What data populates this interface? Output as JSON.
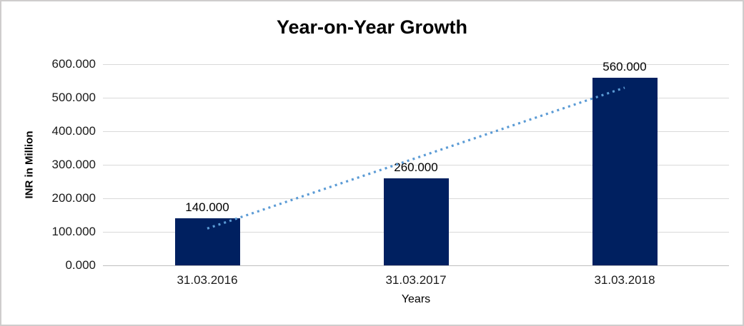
{
  "chart_data": {
    "type": "bar",
    "title": "Year-on-Year Growth",
    "xlabel": "Years",
    "ylabel": "INR in Million",
    "categories": [
      "31.03.2016",
      "31.03.2017",
      "31.03.2018"
    ],
    "values": [
      140,
      260,
      560
    ],
    "value_labels": [
      "140.000",
      "260.000",
      "560.000"
    ],
    "yticks": [
      0,
      100,
      200,
      300,
      400,
      500,
      600
    ],
    "ytick_labels": [
      "0.000",
      "100.000",
      "200.000",
      "300.000",
      "400.000",
      "500.000",
      "600.000"
    ],
    "ylim": [
      0,
      600
    ],
    "gridlines": true,
    "legend": false,
    "trendline": {
      "type": "linear",
      "style": "dotted",
      "start_value": 110,
      "end_value": 530
    },
    "colors": {
      "bar": "#002060",
      "trendline": "#5B9BD5",
      "gridline": "#D9D9D9",
      "axis_line": "#BFBFBF",
      "text": "#000000",
      "border": "#CFCDCD"
    }
  }
}
